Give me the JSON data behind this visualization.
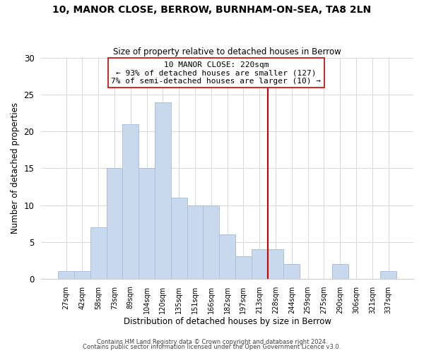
{
  "title": "10, MANOR CLOSE, BERROW, BURNHAM-ON-SEA, TA8 2LN",
  "subtitle": "Size of property relative to detached houses in Berrow",
  "xlabel": "Distribution of detached houses by size in Berrow",
  "ylabel": "Number of detached properties",
  "bar_labels": [
    "27sqm",
    "42sqm",
    "58sqm",
    "73sqm",
    "89sqm",
    "104sqm",
    "120sqm",
    "135sqm",
    "151sqm",
    "166sqm",
    "182sqm",
    "197sqm",
    "213sqm",
    "228sqm",
    "244sqm",
    "259sqm",
    "275sqm",
    "290sqm",
    "306sqm",
    "321sqm",
    "337sqm"
  ],
  "bar_values": [
    1,
    1,
    7,
    15,
    21,
    15,
    24,
    11,
    10,
    10,
    6,
    3,
    4,
    4,
    2,
    0,
    0,
    2,
    0,
    0,
    1
  ],
  "bar_color": "#c8d9ee",
  "bar_edge_color": "#a8c0de",
  "vline_x": 12.5,
  "vline_color": "#cc0000",
  "ylim": [
    0,
    30
  ],
  "yticks": [
    0,
    5,
    10,
    15,
    20,
    25,
    30
  ],
  "annotation_title": "10 MANOR CLOSE: 220sqm",
  "annotation_line1": "← 93% of detached houses are smaller (127)",
  "annotation_line2": "7% of semi-detached houses are larger (10) →",
  "footer1": "Contains HM Land Registry data © Crown copyright and database right 2024.",
  "footer2": "Contains public sector information licensed under the Open Government Licence v3.0.",
  "background_color": "#ffffff",
  "grid_color": "#d8d8d8"
}
